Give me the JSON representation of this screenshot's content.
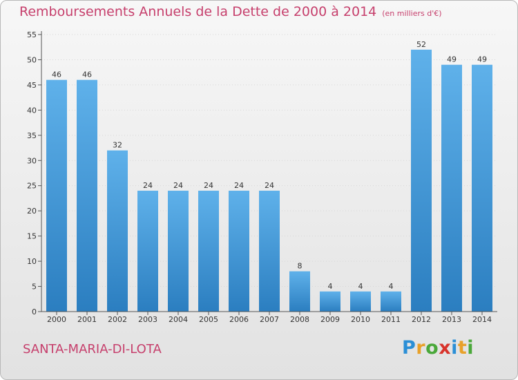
{
  "title": "Remboursements Annuels de la Dette de 2000 à 2014",
  "unit_note": "(en milliers d'€)",
  "region": "SANTA-MARIA-DI-LOTA",
  "logo": {
    "text": "Proxiti",
    "letters": [
      {
        "ch": "P",
        "color": "#2b8fd6"
      },
      {
        "ch": "r",
        "color": "#e8a12a"
      },
      {
        "ch": "o",
        "color": "#4aa83a"
      },
      {
        "ch": "x",
        "color": "#d8332b"
      },
      {
        "ch": "i",
        "color": "#2b8fd6"
      },
      {
        "ch": "t",
        "color": "#e8a12a"
      },
      {
        "ch": "i",
        "color": "#4aa83a"
      }
    ]
  },
  "colors": {
    "title": "#c63f6c",
    "bar_light": "#5fb1ea",
    "bar_dark": "#2b7ec0"
  },
  "chart_data": {
    "type": "bar",
    "title": "Remboursements Annuels de la Dette de 2000 à 2014",
    "xlabel": "",
    "ylabel": "",
    "categories": [
      "2000",
      "2001",
      "2002",
      "2003",
      "2004",
      "2005",
      "2006",
      "2007",
      "2008",
      "2009",
      "2010",
      "2011",
      "2012",
      "2013",
      "2014"
    ],
    "values": [
      46,
      46,
      32,
      24,
      24,
      24,
      24,
      24,
      8,
      4,
      4,
      4,
      52,
      49,
      49
    ],
    "ylim": [
      0,
      55
    ],
    "yticks": [
      0,
      5,
      10,
      15,
      20,
      25,
      30,
      35,
      40,
      45,
      50,
      55
    ],
    "grid": true,
    "data_labels": true
  }
}
